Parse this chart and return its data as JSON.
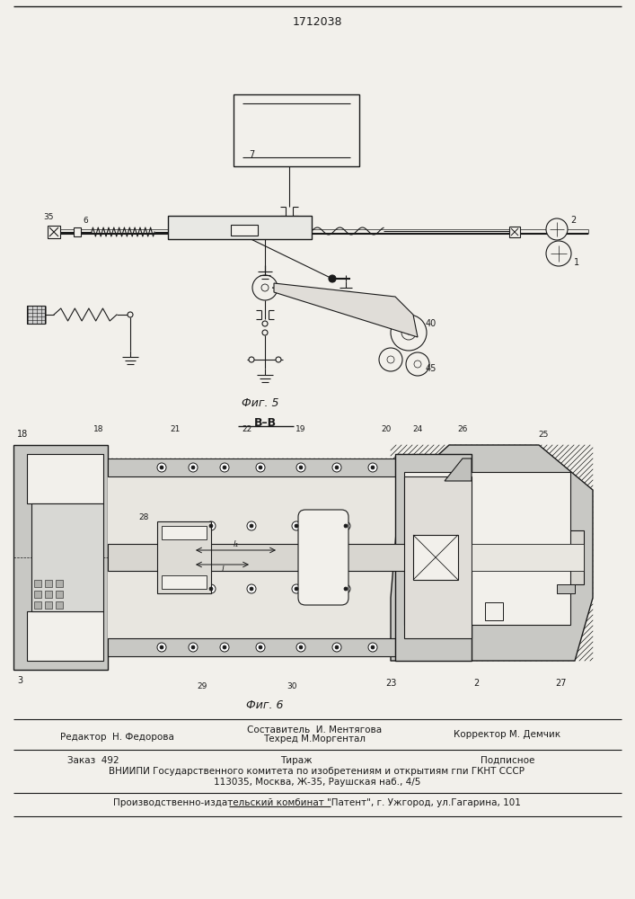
{
  "patent_number": "1712038",
  "fig5_label": "Фиг. 5",
  "fig6_label": "Фиг. 6",
  "section_label": "В–В",
  "editor_line": "Редактор  Н. Федорова",
  "composer_line": "Составитель  И. Ментягова",
  "techred_line": "Техред М.Моргентал",
  "corrector_line": "Корректор М. Демчик",
  "zakaz_line": "Заказ  492",
  "tirazh_line": "Тираж",
  "podpisnoe_line": "Подписное",
  "vniiipi_line": "ВНИИПИ Государственного комитета по изобретениям и открытиям гпи ГКНТ СССР",
  "address_line": "113035, Москва, Ж-35, Раушская наб., 4/5",
  "publisher_line": "Производственно-издательский комбинат \"Патент\", г. Ужгород, ул.Гагарина, 101",
  "bg_color": "#f2f0eb",
  "line_color": "#1a1a1a",
  "text_color": "#1a1a1a"
}
